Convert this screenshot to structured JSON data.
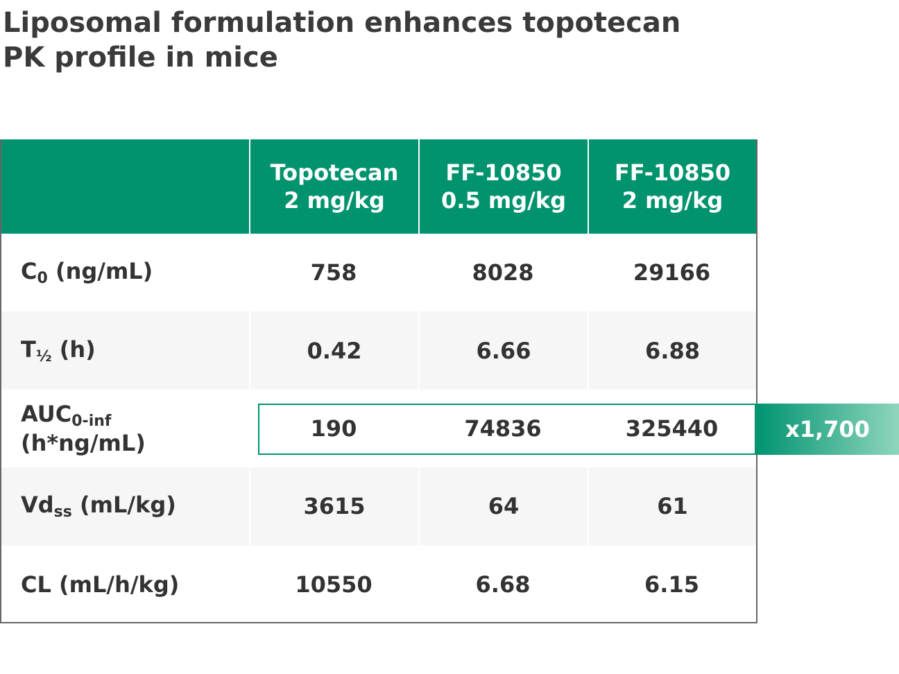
{
  "header": {
    "title": "Liposomal formulation enhances topotecan PK profile in mice"
  },
  "table": {
    "columns": [
      {
        "name": "Topotecan",
        "dose": "2 mg/kg"
      },
      {
        "name": "FF-10850",
        "dose": "0.5 mg/kg"
      },
      {
        "name": "FF-10850",
        "dose": "2 mg/kg"
      }
    ],
    "rows": [
      {
        "label": {
          "base": "C",
          "sub": "0",
          "unit": "(ng/mL)"
        },
        "cells": [
          "758",
          "8028",
          "29166"
        ]
      },
      {
        "label": {
          "base": "T",
          "sub": "½",
          "unit": "(h)"
        },
        "cells": [
          "0.42",
          "6.66",
          "6.88"
        ]
      },
      {
        "label": {
          "base": "AUC",
          "sub": "0-inf",
          "unit": "(h*ng/mL)"
        },
        "cells": [
          "190",
          "74836",
          "325440"
        ],
        "highlight": "x1,700"
      },
      {
        "label": {
          "base": "Vd",
          "sub": "ss",
          "unit": "(mL/kg)"
        },
        "cells": [
          "3615",
          "64",
          "61"
        ]
      },
      {
        "label": {
          "base": "CL",
          "unit": "(mL/h/kg)"
        },
        "cells": [
          "10550",
          "6.68",
          "6.15"
        ]
      }
    ]
  }
}
